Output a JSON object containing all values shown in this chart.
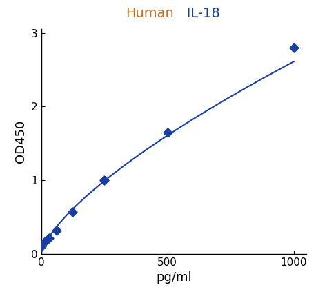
{
  "x_data": [
    0,
    15.6,
    31.2,
    62.5,
    125,
    250,
    500,
    1000
  ],
  "y_data": [
    0.1,
    0.17,
    0.22,
    0.32,
    0.57,
    1.0,
    1.65,
    2.8
  ],
  "title_part1": "Human",
  "title_part2": "   IL-18",
  "title_color1": "#c87020",
  "title_color2": "#1a3fa0",
  "xlabel": "pg/ml",
  "ylabel": "OD450",
  "xlabel_fontsize": 13,
  "ylabel_fontsize": 13,
  "title_fontsize": 14,
  "line_color": "#1a3fa0",
  "marker_color": "#1a3fa0",
  "xlim": [
    0,
    1050
  ],
  "ylim": [
    0,
    3.05
  ],
  "xticks": [
    0,
    500,
    1000
  ],
  "yticks": [
    0,
    1,
    2,
    3
  ],
  "background_color": "#ffffff"
}
